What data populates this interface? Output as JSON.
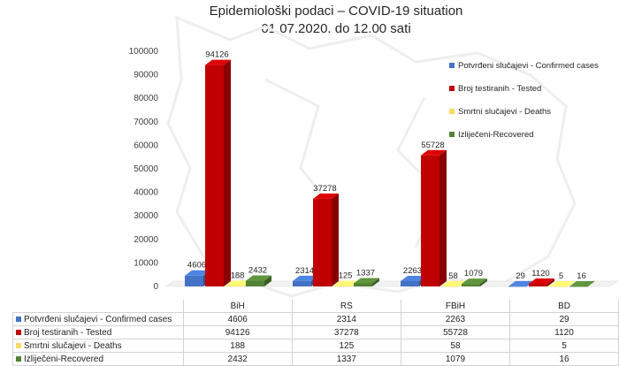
{
  "chart_data": {
    "type": "bar",
    "title": "Epidemiološki podaci – COVID-19 situation",
    "subtitle": "01.07.2020. do 12.00 sati",
    "categories": [
      "BiH",
      "RS",
      "FBiH",
      "BD"
    ],
    "ylim": [
      0,
      100000
    ],
    "yticks": [
      "0",
      "10000",
      "20000",
      "30000",
      "40000",
      "50000",
      "60000",
      "70000",
      "80000",
      "90000",
      "100000"
    ],
    "grid": false,
    "legend_position": "right",
    "series": [
      {
        "name": "Potvrđeni slučajevi - Confirmed cases",
        "values": [
          4606,
          2314,
          2263,
          29
        ],
        "labels": [
          "4606",
          "2314",
          "2263",
          "29"
        ],
        "color": "#4472c4"
      },
      {
        "name": "Broj testiranih - Tested",
        "values": [
          94126,
          37278,
          55728,
          1120
        ],
        "labels": [
          "94126",
          "37278",
          "55728",
          "1120"
        ],
        "color": "#c00000"
      },
      {
        "name": "Smrtni slučajevi - Deaths",
        "values": [
          188,
          125,
          58,
          5
        ],
        "labels": [
          "188",
          "125",
          "58",
          "5"
        ],
        "color": "#ffd966"
      },
      {
        "name": "Izliječeni-Recovered",
        "values": [
          2432,
          1337,
          1079,
          16
        ],
        "labels": [
          "2432",
          "1337",
          "1079",
          "16"
        ],
        "color": "#548235"
      }
    ]
  }
}
